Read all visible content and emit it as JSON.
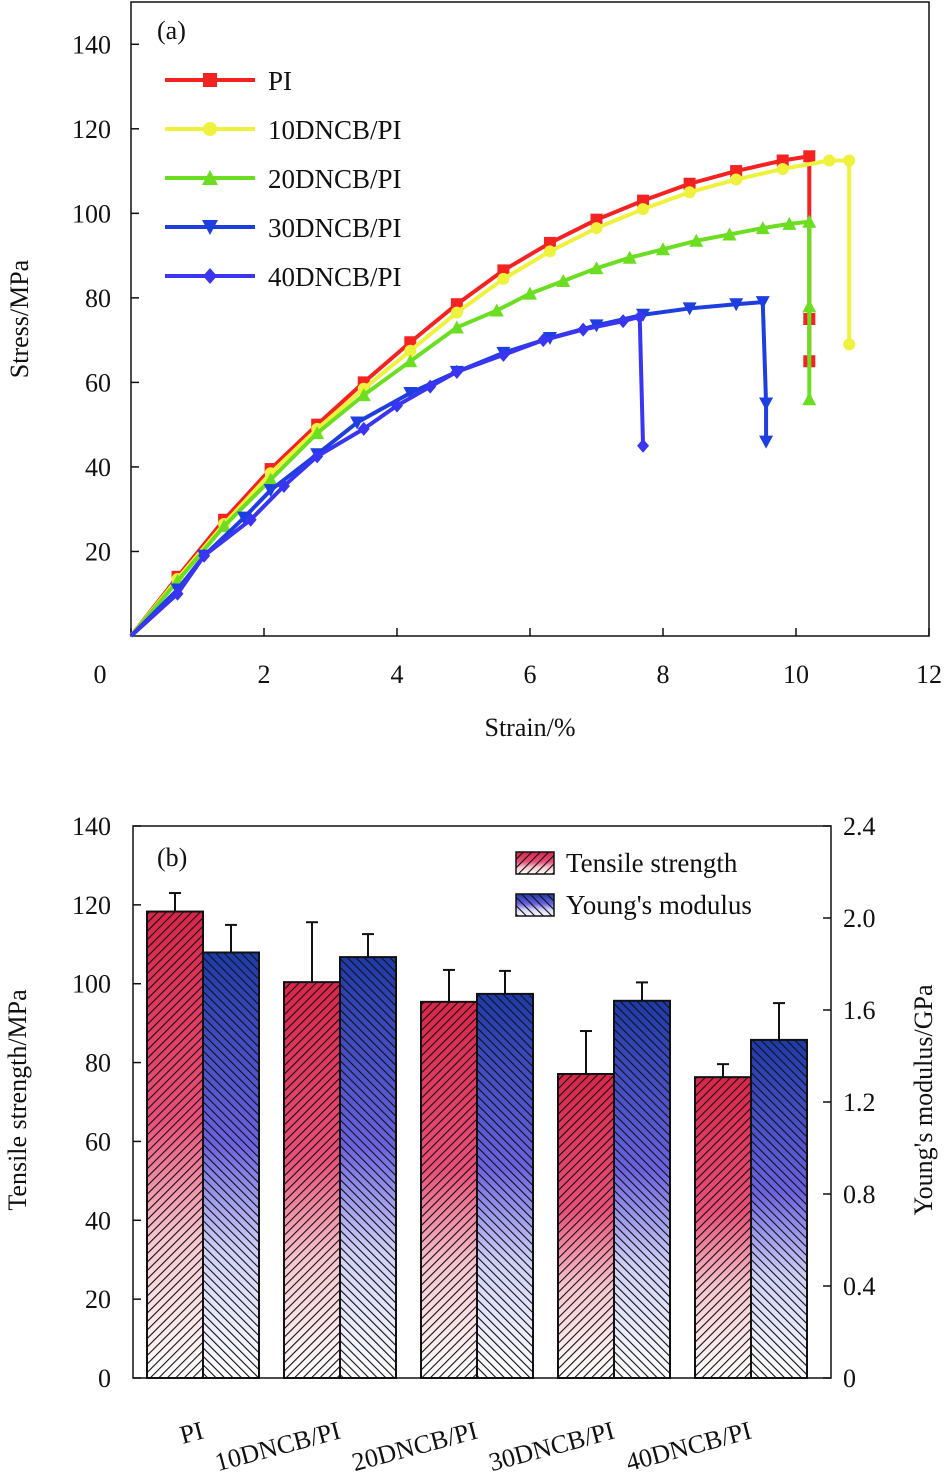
{
  "chart_data": [
    {
      "type": "line",
      "panel_label": "(a)",
      "xlabel": "Strain/%",
      "ylabel": "Stress/MPa",
      "xlim": [
        0,
        12
      ],
      "ylim": [
        0,
        150
      ],
      "xticks": [
        0,
        2,
        4,
        6,
        8,
        10,
        12
      ],
      "yticks": [
        20,
        40,
        60,
        80,
        100,
        120,
        140
      ],
      "grid": false,
      "legend_position": "top-left",
      "series": [
        {
          "name": "PI",
          "color": "#f52222",
          "marker": "square",
          "x": [
            0,
            0.7,
            1.4,
            2.1,
            2.8,
            3.5,
            4.2,
            4.9,
            5.6,
            6.3,
            7.0,
            7.7,
            8.4,
            9.1,
            9.8,
            10.2,
            10.2,
            10.2
          ],
          "y": [
            0,
            14,
            27.5,
            39.5,
            50,
            60,
            69.5,
            78.5,
            86.5,
            93,
            98.5,
            103,
            107,
            110,
            112.5,
            113.5,
            75,
            65
          ]
        },
        {
          "name": "10DNCB/PI",
          "color": "#eef23c",
          "marker": "circle",
          "x": [
            0,
            0.7,
            1.4,
            2.1,
            2.8,
            3.5,
            4.2,
            4.9,
            5.6,
            6.3,
            7.0,
            7.7,
            8.4,
            9.1,
            9.8,
            10.5,
            10.8,
            10.8
          ],
          "y": [
            0,
            13.5,
            26.5,
            38.5,
            49,
            58.5,
            67.5,
            76.5,
            84.5,
            91,
            96.5,
            101,
            105,
            108,
            110.5,
            112.5,
            112.5,
            69
          ]
        },
        {
          "name": "20DNCB/PI",
          "color": "#6bde22",
          "marker": "triangle-up",
          "x": [
            0,
            0.7,
            1.4,
            2.1,
            2.8,
            3.5,
            4.2,
            4.9,
            5.5,
            6.0,
            6.5,
            7.0,
            7.5,
            8.0,
            8.5,
            9.0,
            9.5,
            9.9,
            10.2,
            10.2,
            10.2
          ],
          "y": [
            0,
            13,
            26,
            37,
            48,
            57,
            65,
            73,
            77,
            81,
            84,
            87,
            89.5,
            91.5,
            93.5,
            95,
            96.5,
            97.5,
            98,
            78,
            56
          ]
        },
        {
          "name": "30DNCB/PI",
          "color": "#1d3fe0",
          "marker": "triangle-down",
          "x": [
            0,
            0.7,
            1.1,
            1.7,
            2.1,
            2.8,
            3.4,
            4.2,
            4.9,
            5.6,
            6.3,
            7.0,
            7.7,
            8.4,
            9.1,
            9.5,
            9.55,
            9.55
          ],
          "y": [
            0,
            11,
            19,
            28,
            34.5,
            43,
            50.5,
            57.5,
            62.5,
            67,
            70.5,
            73.5,
            76,
            77.5,
            78.5,
            79,
            55,
            46
          ]
        },
        {
          "name": "40DNCB/PI",
          "color": "#3a35f2",
          "marker": "diamond",
          "x": [
            0,
            0.7,
            1.1,
            1.8,
            2.3,
            2.8,
            3.5,
            4.0,
            4.5,
            4.9,
            5.6,
            6.2,
            6.8,
            7.4,
            7.65,
            7.7
          ],
          "y": [
            0,
            10,
            19,
            27.5,
            35.5,
            42.5,
            49,
            54.5,
            59,
            62.5,
            66.5,
            70,
            72.5,
            74.5,
            75.5,
            45
          ]
        }
      ]
    },
    {
      "type": "bar",
      "panel_label": "(b)",
      "categories": [
        "PI",
        "10DNCB/PI",
        "20DNCB/PI",
        "30DNCB/PI",
        "40DNCB/PI"
      ],
      "ylabel": "Tensile strength/MPa",
      "y2label": "Young's modulus/GPa",
      "ylim": [
        0,
        140
      ],
      "y2lim": [
        0,
        2.4
      ],
      "yticks": [
        0,
        20,
        40,
        60,
        80,
        100,
        120,
        140
      ],
      "y2ticks": [
        "0",
        "0.4",
        "0.8",
        "1.2",
        "1.6",
        "2.0",
        "2.4"
      ],
      "grid": false,
      "legend_position": "top-right",
      "series": [
        {
          "name": "Tensile strength",
          "axis": "left",
          "color": "#d8264a",
          "values": [
            118.3,
            100.4,
            95.4,
            77.1,
            76.3
          ],
          "error_upper": [
            123,
            115.6,
            103.5,
            88,
            79.6
          ]
        },
        {
          "name": "Young's modulus",
          "axis": "right",
          "color": "#2a3fb0",
          "values": [
            1.85,
            1.83,
            1.67,
            1.64,
            1.47
          ],
          "error_upper": [
            1.97,
            1.93,
            1.77,
            1.72,
            1.63
          ]
        }
      ]
    }
  ]
}
